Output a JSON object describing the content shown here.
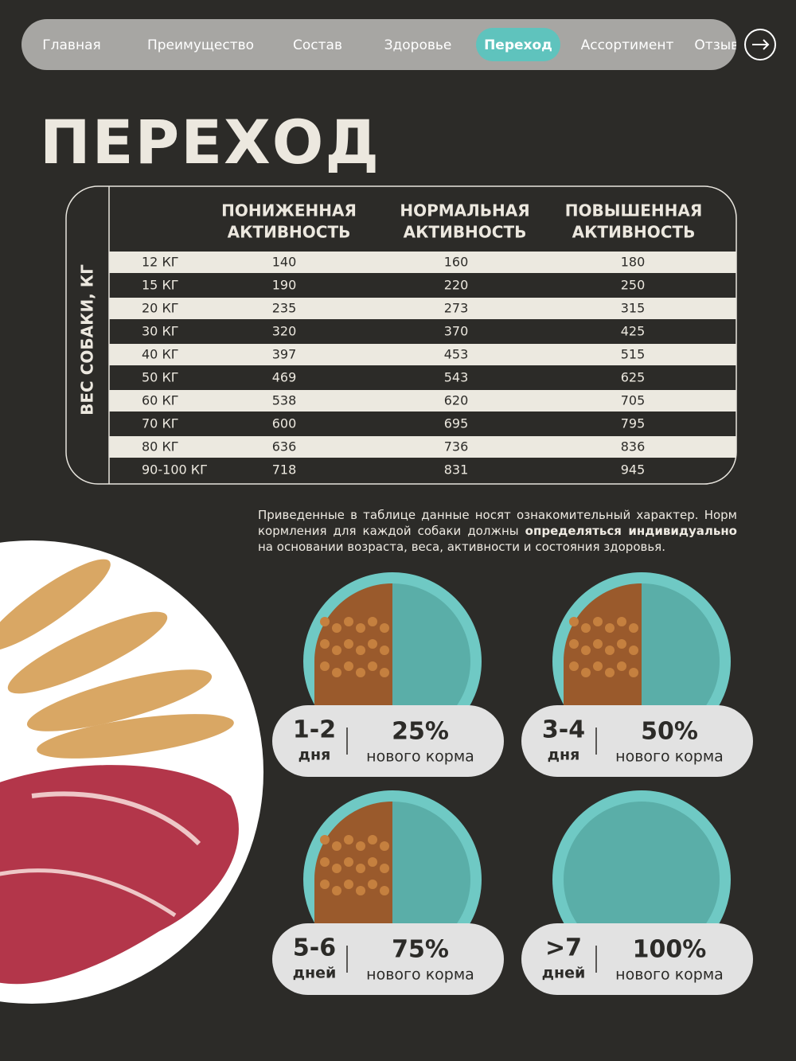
{
  "nav": {
    "items": [
      "Главная",
      "Преимущество",
      "Состав",
      "Здоровье",
      "Переход",
      "Ассортимент",
      "Отзывы"
    ],
    "active": 4
  },
  "title": "ПЕРЕХОД",
  "table": {
    "row_header": "ВЕС СОБАКИ, КГ",
    "columns": [
      [
        "ПОНИЖЕННАЯ",
        "АКТИВНОСТЬ"
      ],
      [
        "НОРМАЛЬНАЯ",
        "АКТИВНОСТЬ"
      ],
      [
        "ПОВЫШЕННАЯ",
        "АКТИВНОСТЬ"
      ]
    ],
    "rows": [
      [
        "12 КГ",
        "140",
        "160",
        "180"
      ],
      [
        "15 КГ",
        "190",
        "220",
        "250"
      ],
      [
        "20 КГ",
        "235",
        "273",
        "315"
      ],
      [
        "30 КГ",
        "320",
        "370",
        "425"
      ],
      [
        "40 КГ",
        "397",
        "453",
        "515"
      ],
      [
        "50 КГ",
        "469",
        "543",
        "625"
      ],
      [
        "60 КГ",
        "538",
        "620",
        "705"
      ],
      [
        "70 КГ",
        "600",
        "695",
        "795"
      ],
      [
        "80 КГ",
        "636",
        "736",
        "836"
      ],
      [
        "90-100 КГ",
        "718",
        "831",
        "945"
      ]
    ]
  },
  "note": [
    "Приведенные в таблице данные носят ознакомительный характер. Норм кормления для каждой собаки должны ",
    "определяться индивидуально",
    " на основании возраста, веса, активности и состояния здоровья."
  ],
  "cards": [
    {
      "period": "1-2",
      "unit": "дня",
      "percent": "25%",
      "caption": "нового корма"
    },
    {
      "period": "3-4",
      "unit": "дня",
      "percent": "50%",
      "caption": "нового корма"
    },
    {
      "period": "5-6",
      "unit": "дней",
      "percent": "75%",
      "caption": "нового корма"
    },
    {
      "period": ">7",
      "unit": "дней",
      "percent": "100%",
      "caption": "нового корма"
    }
  ]
}
